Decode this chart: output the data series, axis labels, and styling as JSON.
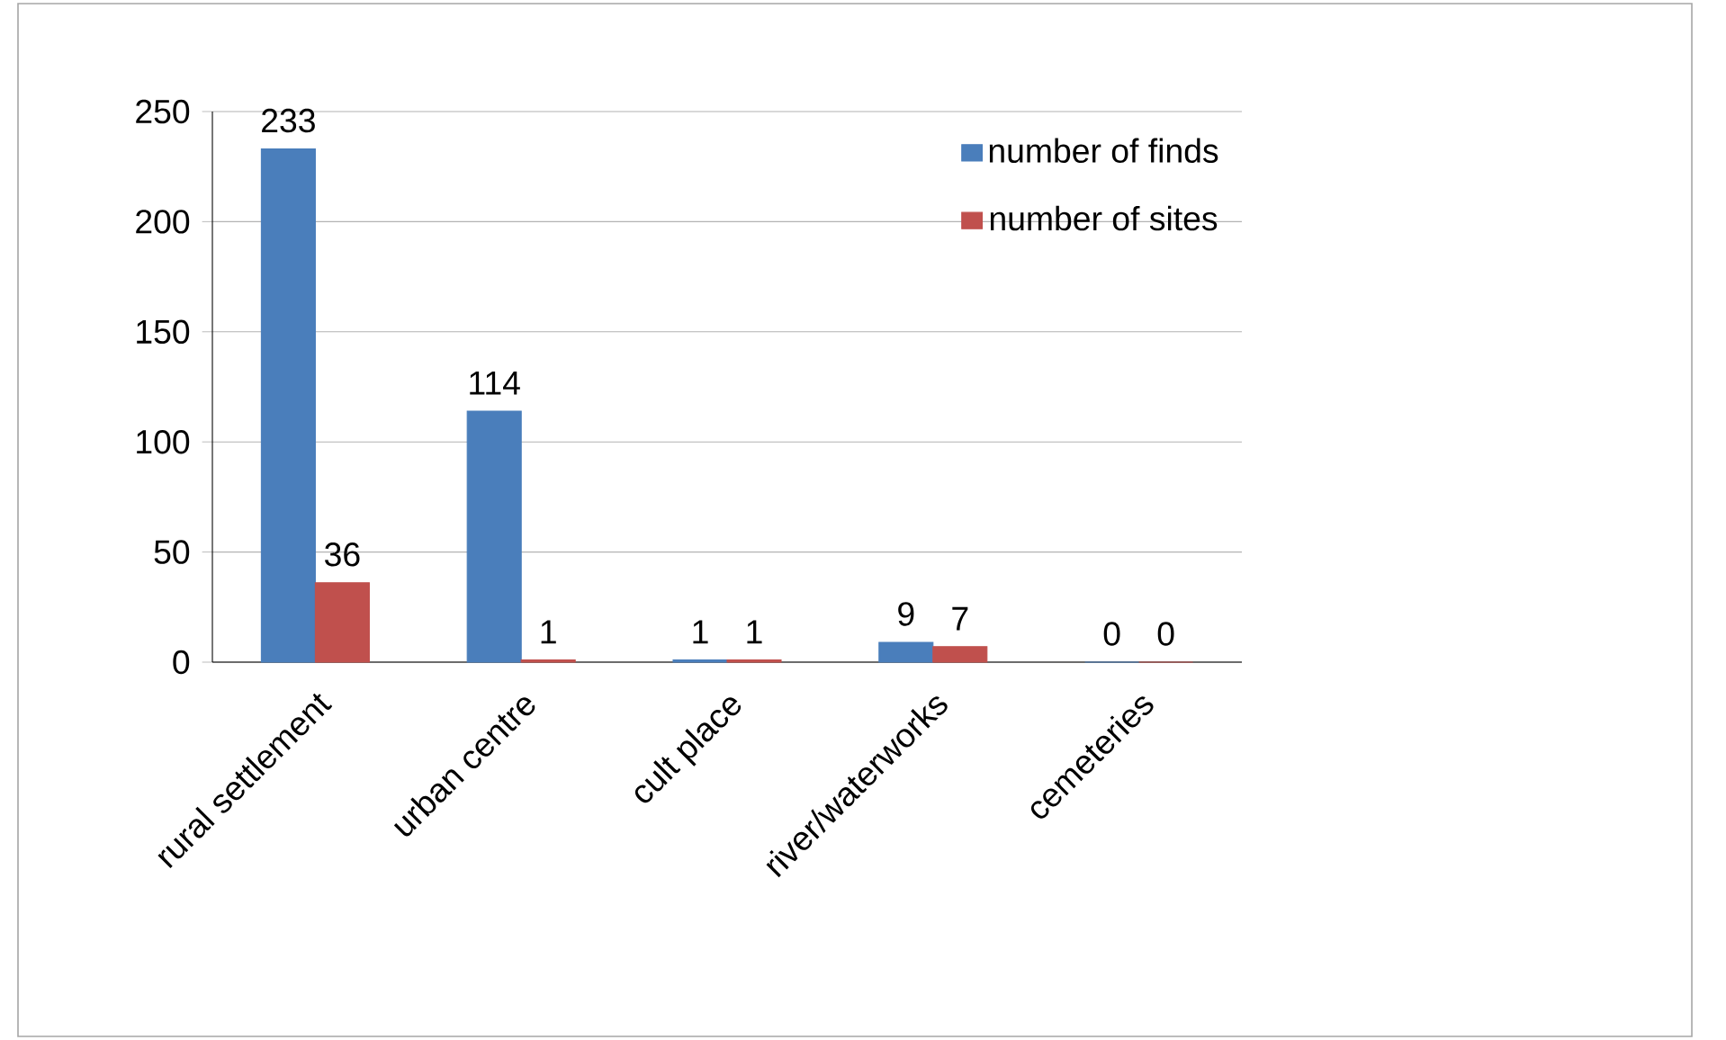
{
  "chart_data": {
    "type": "bar",
    "categories": [
      "rural settlement",
      "urban centre",
      "cult place",
      "river/waterworks",
      "cemeteries"
    ],
    "series": [
      {
        "name": "number of finds",
        "color": "#4a7ebb",
        "values": [
          233,
          114,
          1,
          9,
          0
        ]
      },
      {
        "name": "number of sites",
        "color": "#c0504d",
        "values": [
          36,
          1,
          1,
          7,
          0
        ]
      }
    ],
    "ylim": [
      0,
      250
    ],
    "yticks": [
      0,
      50,
      100,
      150,
      200,
      250
    ],
    "grid": "y",
    "legend": "top right",
    "data_labels": true
  }
}
